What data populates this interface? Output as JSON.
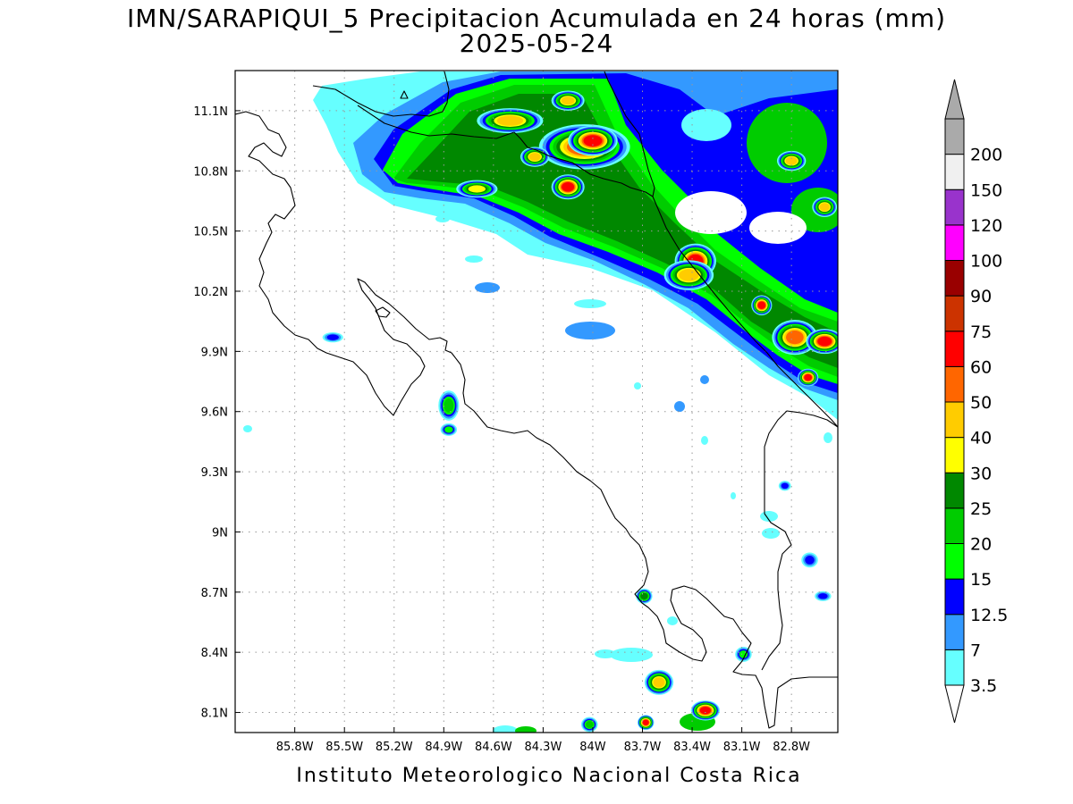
{
  "title": {
    "line1": "IMN/SARAPIQUI_5 Precipitacion Acumulada en 24 horas (mm)",
    "line2": "2025-05-24"
  },
  "credit": "Instituto Meteorologico Nacional Costa Rica",
  "map": {
    "lon_range": [
      -86.16,
      -82.52
    ],
    "lat_range": [
      8.0,
      11.3
    ],
    "x_ticks": [
      {
        "lon": -85.8,
        "label": "85.8W"
      },
      {
        "lon": -85.5,
        "label": "85.5W"
      },
      {
        "lon": -85.2,
        "label": "85.2W"
      },
      {
        "lon": -84.9,
        "label": "84.9W"
      },
      {
        "lon": -84.6,
        "label": "84.6W"
      },
      {
        "lon": -84.3,
        "label": "84.3W"
      },
      {
        "lon": -84.0,
        "label": "84W"
      },
      {
        "lon": -83.7,
        "label": "83.7W"
      },
      {
        "lon": -83.4,
        "label": "83.4W"
      },
      {
        "lon": -83.1,
        "label": "83.1W"
      },
      {
        "lon": -82.8,
        "label": "82.8W"
      }
    ],
    "y_ticks": [
      {
        "lat": 11.1,
        "label": "11.1N"
      },
      {
        "lat": 10.8,
        "label": "10.8N"
      },
      {
        "lat": 10.5,
        "label": "10.5N"
      },
      {
        "lat": 10.2,
        "label": "10.2N"
      },
      {
        "lat": 9.9,
        "label": "9.9N"
      },
      {
        "lat": 9.6,
        "label": "9.6N"
      },
      {
        "lat": 9.3,
        "label": "9.3N"
      },
      {
        "lat": 9.0,
        "label": "9N"
      },
      {
        "lat": 8.7,
        "label": "8.7N"
      },
      {
        "lat": 8.4,
        "label": "8.4N"
      },
      {
        "lat": 8.1,
        "label": "8.1N"
      }
    ],
    "grid": true
  },
  "colorbar": {
    "units": "mm",
    "levels": [
      {
        "label": "3.5",
        "color": "#66ffff"
      },
      {
        "label": "7",
        "color": "#3399ff"
      },
      {
        "label": "12.5",
        "color": "#0000ff"
      },
      {
        "label": "15",
        "color": "#00ff00"
      },
      {
        "label": "20",
        "color": "#00cc00"
      },
      {
        "label": "25",
        "color": "#008800"
      },
      {
        "label": "30",
        "color": "#ffff00"
      },
      {
        "label": "40",
        "color": "#ffcc00"
      },
      {
        "label": "50",
        "color": "#ff6600"
      },
      {
        "label": "60",
        "color": "#ff0000"
      },
      {
        "label": "75",
        "color": "#cc3300"
      },
      {
        "label": "90",
        "color": "#990000"
      },
      {
        "label": "100",
        "color": "#ff00ff"
      },
      {
        "label": "120",
        "color": "#9933cc"
      },
      {
        "label": "150",
        "color": "#f0f0f0"
      },
      {
        "label": "200",
        "color": "#aaaaaa"
      }
    ],
    "under_color": "#ffffff",
    "over_color": "#aaaaaa"
  },
  "precip_cells": [
    {
      "lon": -84.05,
      "lat": 10.92,
      "rx": 0.22,
      "ry": 0.09,
      "value": 55
    },
    {
      "lon": -84.0,
      "lat": 10.95,
      "rx": 0.12,
      "ry": 0.06,
      "value": 65
    },
    {
      "lon": -84.15,
      "lat": 10.72,
      "rx": 0.08,
      "ry": 0.05,
      "value": 62
    },
    {
      "lon": -84.5,
      "lat": 11.05,
      "rx": 0.16,
      "ry": 0.05,
      "value": 42
    },
    {
      "lon": -84.35,
      "lat": 10.87,
      "rx": 0.07,
      "ry": 0.04,
      "value": 42
    },
    {
      "lon": -84.15,
      "lat": 11.15,
      "rx": 0.08,
      "ry": 0.04,
      "value": 40
    },
    {
      "lon": -84.7,
      "lat": 10.71,
      "rx": 0.1,
      "ry": 0.035,
      "value": 35
    },
    {
      "lon": -83.38,
      "lat": 10.35,
      "rx": 0.1,
      "ry": 0.07,
      "value": 65
    },
    {
      "lon": -83.42,
      "lat": 10.28,
      "rx": 0.12,
      "ry": 0.06,
      "value": 45
    },
    {
      "lon": -82.98,
      "lat": 10.13,
      "rx": 0.05,
      "ry": 0.04,
      "value": 62
    },
    {
      "lon": -82.78,
      "lat": 9.97,
      "rx": 0.11,
      "ry": 0.07,
      "value": 52
    },
    {
      "lon": -82.6,
      "lat": 9.95,
      "rx": 0.09,
      "ry": 0.05,
      "value": 62
    },
    {
      "lon": -82.7,
      "lat": 9.77,
      "rx": 0.05,
      "ry": 0.035,
      "value": 62
    },
    {
      "lon": -82.8,
      "lat": 10.85,
      "rx": 0.07,
      "ry": 0.04,
      "value": 42
    },
    {
      "lon": -82.6,
      "lat": 10.62,
      "rx": 0.06,
      "ry": 0.04,
      "value": 40
    },
    {
      "lon": -83.6,
      "lat": 8.25,
      "rx": 0.07,
      "ry": 0.05,
      "value": 42
    },
    {
      "lon": -83.32,
      "lat": 8.11,
      "rx": 0.07,
      "ry": 0.04,
      "value": 62
    },
    {
      "lon": -83.68,
      "lat": 8.05,
      "rx": 0.04,
      "ry": 0.03,
      "value": 62
    },
    {
      "lon": -84.87,
      "lat": 9.63,
      "rx": 0.05,
      "ry": 0.06,
      "value": 22
    },
    {
      "lon": -84.87,
      "lat": 9.51,
      "rx": 0.04,
      "ry": 0.025,
      "value": 18
    },
    {
      "lon": -85.57,
      "lat": 9.97,
      "rx": 0.05,
      "ry": 0.02,
      "value": 13
    },
    {
      "lon": -83.69,
      "lat": 8.68,
      "rx": 0.04,
      "ry": 0.03,
      "value": 26
    },
    {
      "lon": -83.09,
      "lat": 8.39,
      "rx": 0.04,
      "ry": 0.03,
      "value": 18
    },
    {
      "lon": -82.69,
      "lat": 8.86,
      "rx": 0.04,
      "ry": 0.03,
      "value": 14
    },
    {
      "lon": -82.61,
      "lat": 8.68,
      "rx": 0.04,
      "ry": 0.02,
      "value": 14
    },
    {
      "lon": -82.84,
      "lat": 9.23,
      "rx": 0.03,
      "ry": 0.02,
      "value": 13
    },
    {
      "lon": -84.02,
      "lat": 8.04,
      "rx": 0.04,
      "ry": 0.03,
      "value": 22
    }
  ]
}
